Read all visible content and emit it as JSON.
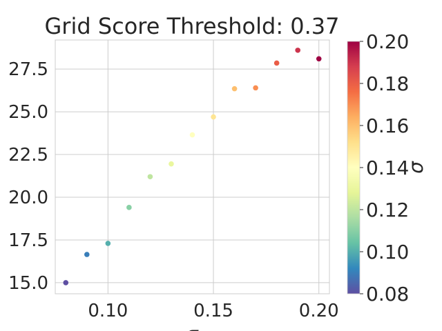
{
  "chart_data": {
    "type": "scatter",
    "title": "Grid Score Threshold: 0.37",
    "xlabel": "σ",
    "ylabel": "",
    "xlim": [
      0.075,
      0.205
    ],
    "ylim": [
      14.35,
      29.2
    ],
    "grid": true,
    "x_ticks": [
      0.1,
      0.15,
      0.2
    ],
    "x_tick_labels": [
      "0.10",
      "0.15",
      "0.20"
    ],
    "y_ticks": [
      15.0,
      17.5,
      20.0,
      22.5,
      25.0,
      27.5
    ],
    "y_tick_labels": [
      "15.0",
      "17.5",
      "20.0",
      "22.5",
      "25.0",
      "27.5"
    ],
    "points": [
      {
        "x": 0.08,
        "y": 15.0
      },
      {
        "x": 0.09,
        "y": 16.65
      },
      {
        "x": 0.1,
        "y": 17.3
      },
      {
        "x": 0.11,
        "y": 19.4
      },
      {
        "x": 0.12,
        "y": 21.2
      },
      {
        "x": 0.13,
        "y": 21.95
      },
      {
        "x": 0.14,
        "y": 23.65
      },
      {
        "x": 0.15,
        "y": 24.7
      },
      {
        "x": 0.16,
        "y": 26.35
      },
      {
        "x": 0.17,
        "y": 26.4
      },
      {
        "x": 0.18,
        "y": 27.85
      },
      {
        "x": 0.19,
        "y": 28.6
      },
      {
        "x": 0.2,
        "y": 28.1
      }
    ],
    "color_by": "x",
    "colormap": "Spectral_r",
    "colorbar": {
      "label": "σ",
      "range": [
        0.08,
        0.2
      ],
      "ticks": [
        0.08,
        0.1,
        0.12,
        0.14,
        0.16,
        0.18,
        0.2
      ],
      "tick_labels": [
        "0.08",
        "0.10",
        "0.12",
        "0.14",
        "0.16",
        "0.18",
        "0.20"
      ]
    }
  }
}
